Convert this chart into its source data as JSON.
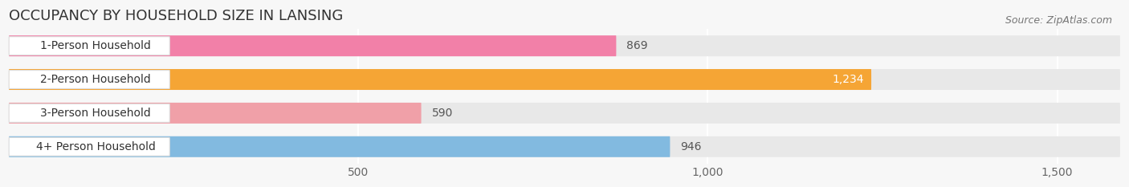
{
  "title": "OCCUPANCY BY HOUSEHOLD SIZE IN LANSING",
  "source": "Source: ZipAtlas.com",
  "categories": [
    "1-Person Household",
    "2-Person Household",
    "3-Person Household",
    "4+ Person Household"
  ],
  "values": [
    869,
    1234,
    590,
    946
  ],
  "bar_colors": [
    "#f280a8",
    "#f5a535",
    "#f0a0a8",
    "#82bae0"
  ],
  "bar_bg_color": "#e8e8e8",
  "label_bg_color": "#ffffff",
  "label_border_color": "#dddddd",
  "xlim_min": 0,
  "xlim_max": 1590,
  "xticks": [
    500,
    1000,
    1500
  ],
  "title_fontsize": 13,
  "label_fontsize": 10,
  "value_fontsize": 10,
  "source_fontsize": 9,
  "bg_color": "#f7f7f7",
  "bar_height": 0.62,
  "bar_gap": 0.38
}
